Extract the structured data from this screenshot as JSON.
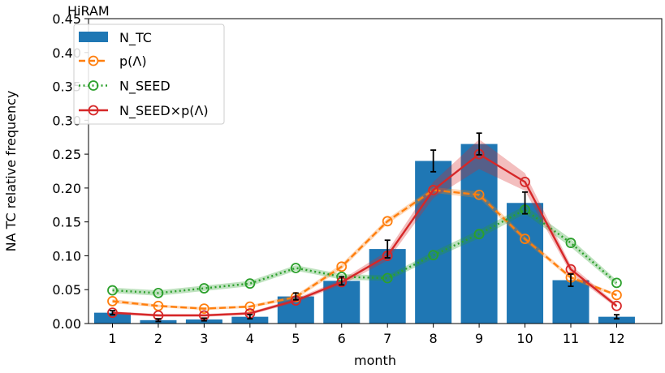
{
  "chart_data": {
    "type": "bar",
    "title": "HiRAM",
    "xlabel": "month",
    "ylabel": "NA TC relative frequency",
    "x": [
      1,
      2,
      3,
      4,
      5,
      6,
      7,
      8,
      9,
      10,
      11,
      12
    ],
    "xticks": [
      "1",
      "2",
      "3",
      "4",
      "5",
      "6",
      "7",
      "8",
      "9",
      "10",
      "11",
      "12"
    ],
    "ylim": [
      0,
      0.45
    ],
    "yticks": [
      "0.00",
      "0.05",
      "0.10",
      "0.15",
      "0.20",
      "0.25",
      "0.30",
      "0.35",
      "0.40",
      "0.45"
    ],
    "grid": false,
    "legend_position": "upper-left",
    "bars": {
      "name": "N_TC",
      "color": "#1f77b4",
      "values": [
        0.016,
        0.005,
        0.006,
        0.01,
        0.04,
        0.063,
        0.11,
        0.24,
        0.265,
        0.178,
        0.064,
        0.01
      ],
      "errors": [
        0.003,
        0.002,
        0.002,
        0.003,
        0.005,
        0.006,
        0.013,
        0.016,
        0.016,
        0.016,
        0.009,
        0.003
      ]
    },
    "series": [
      {
        "name": "p(Λ)",
        "color": "#ff7f0e",
        "style": "dashed",
        "marker": "open-circle",
        "values": [
          0.033,
          0.026,
          0.022,
          0.025,
          0.039,
          0.084,
          0.151,
          0.197,
          0.19,
          0.125,
          0.068,
          0.042
        ],
        "band": [
          0.003,
          0.002,
          0.002,
          0.002,
          0.003,
          0.004,
          0.004,
          0.004,
          0.005,
          0.004,
          0.003,
          0.002
        ]
      },
      {
        "name": "N_SEED",
        "color": "#2ca02c",
        "style": "dotted",
        "marker": "open-circle",
        "values": [
          0.049,
          0.045,
          0.052,
          0.059,
          0.082,
          0.069,
          0.067,
          0.101,
          0.132,
          0.168,
          0.119,
          0.06
        ],
        "band": [
          0.004,
          0.004,
          0.004,
          0.004,
          0.004,
          0.004,
          0.004,
          0.005,
          0.006,
          0.006,
          0.006,
          0.004
        ]
      },
      {
        "name": "N_SEED×p(Λ)",
        "color": "#d62728",
        "style": "solid",
        "marker": "open-circle",
        "values": [
          0.016,
          0.012,
          0.012,
          0.015,
          0.034,
          0.061,
          0.1,
          0.197,
          0.25,
          0.209,
          0.08,
          0.026
        ],
        "band": [
          0.002,
          0.002,
          0.002,
          0.002,
          0.003,
          0.004,
          0.007,
          0.012,
          0.022,
          0.013,
          0.006,
          0.003
        ]
      }
    ]
  }
}
